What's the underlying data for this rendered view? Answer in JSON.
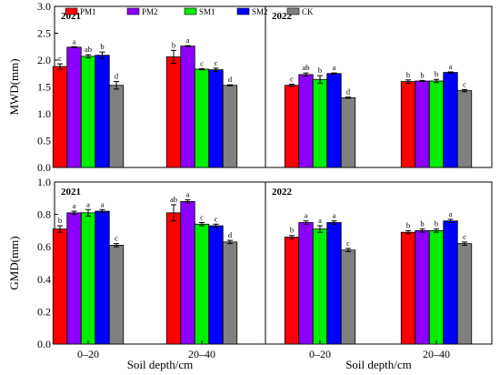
{
  "chart_data": {
    "type": "bar",
    "layout": "2x2 grouped bar panels with error bars and significance letters",
    "legend": {
      "placement": "top-left",
      "entries": [
        {
          "name": "PM1",
          "color": "#ff0000"
        },
        {
          "name": "PM2",
          "color": "#8b00ff"
        },
        {
          "name": "SM1",
          "color": "#00ee00"
        },
        {
          "name": "SM2",
          "color": "#0000ff"
        },
        {
          "name": "CK",
          "color": "#808080"
        }
      ]
    },
    "xlabel": "Soil depth/cm",
    "categories": [
      "0–20",
      "20–40"
    ],
    "rows": [
      {
        "ylabel": "MWD(mm)",
        "ylim": [
          0,
          3.0
        ],
        "yticks": [
          "0.0",
          "0.5",
          "1.0",
          "1.5",
          "2.0",
          "2.5",
          "3.0"
        ],
        "tick_values": [
          0,
          0.5,
          1.0,
          1.5,
          2.0,
          2.5,
          3.0
        ],
        "panels": [
          {
            "year": "2021",
            "groups": [
              {
                "values": [
                  1.88,
                  2.24,
                  2.07,
                  2.09,
                  1.53
                ],
                "errors": [
                  0.05,
                  0.01,
                  0.03,
                  0.06,
                  0.07
                ],
                "letters": [
                  "c",
                  "a",
                  "ab",
                  "b",
                  "d"
                ]
              },
              {
                "values": [
                  2.06,
                  2.26,
                  1.83,
                  1.82,
                  1.53
                ],
                "errors": [
                  0.12,
                  0.01,
                  0.01,
                  0.03,
                  0.01
                ],
                "letters": [
                  "b",
                  "a",
                  "c",
                  "c",
                  "d"
                ]
              }
            ]
          },
          {
            "year": "2022",
            "groups": [
              {
                "values": [
                  1.53,
                  1.73,
                  1.64,
                  1.75,
                  1.3
                ],
                "errors": [
                  0.02,
                  0.03,
                  0.07,
                  0.01,
                  0.01
                ],
                "letters": [
                  "c",
                  "ab",
                  "b",
                  "a",
                  "d"
                ]
              },
              {
                "values": [
                  1.6,
                  1.61,
                  1.61,
                  1.77,
                  1.43
                ],
                "errors": [
                  0.03,
                  0.01,
                  0.03,
                  0.01,
                  0.02
                ],
                "letters": [
                  "b",
                  "b",
                  "b",
                  "a",
                  "c"
                ]
              }
            ]
          }
        ]
      },
      {
        "ylabel": "GMD(mm)",
        "ylim": [
          0,
          1.0
        ],
        "yticks": [
          "0.0",
          "0.2",
          "0.4",
          "0.6",
          "0.8",
          "1.0"
        ],
        "tick_values": [
          0,
          0.2,
          0.4,
          0.6,
          0.8,
          1.0
        ],
        "panels": [
          {
            "year": "2021",
            "groups": [
              {
                "values": [
                  0.71,
                  0.81,
                  0.81,
                  0.82,
                  0.61
                ],
                "errors": [
                  0.02,
                  0.01,
                  0.02,
                  0.01,
                  0.01
                ],
                "letters": [
                  "b",
                  "a",
                  "a",
                  "a",
                  "c"
                ]
              },
              {
                "values": [
                  0.81,
                  0.88,
                  0.74,
                  0.73,
                  0.63
                ],
                "errors": [
                  0.05,
                  0.01,
                  0.01,
                  0.01,
                  0.01
                ],
                "letters": [
                  "ab",
                  "a",
                  "c",
                  "c",
                  "d"
                ]
              }
            ]
          },
          {
            "year": "2022",
            "groups": [
              {
                "values": [
                  0.66,
                  0.75,
                  0.71,
                  0.75,
                  0.58
                ],
                "errors": [
                  0.01,
                  0.01,
                  0.02,
                  0.01,
                  0.01
                ],
                "letters": [
                  "b",
                  "a",
                  "a",
                  "a",
                  "c"
                ]
              },
              {
                "values": [
                  0.69,
                  0.7,
                  0.7,
                  0.76,
                  0.62
                ],
                "errors": [
                  0.01,
                  0.01,
                  0.01,
                  0.01,
                  0.01
                ],
                "letters": [
                  "b",
                  "b",
                  "b",
                  "a",
                  "c"
                ]
              }
            ]
          }
        ]
      }
    ]
  }
}
